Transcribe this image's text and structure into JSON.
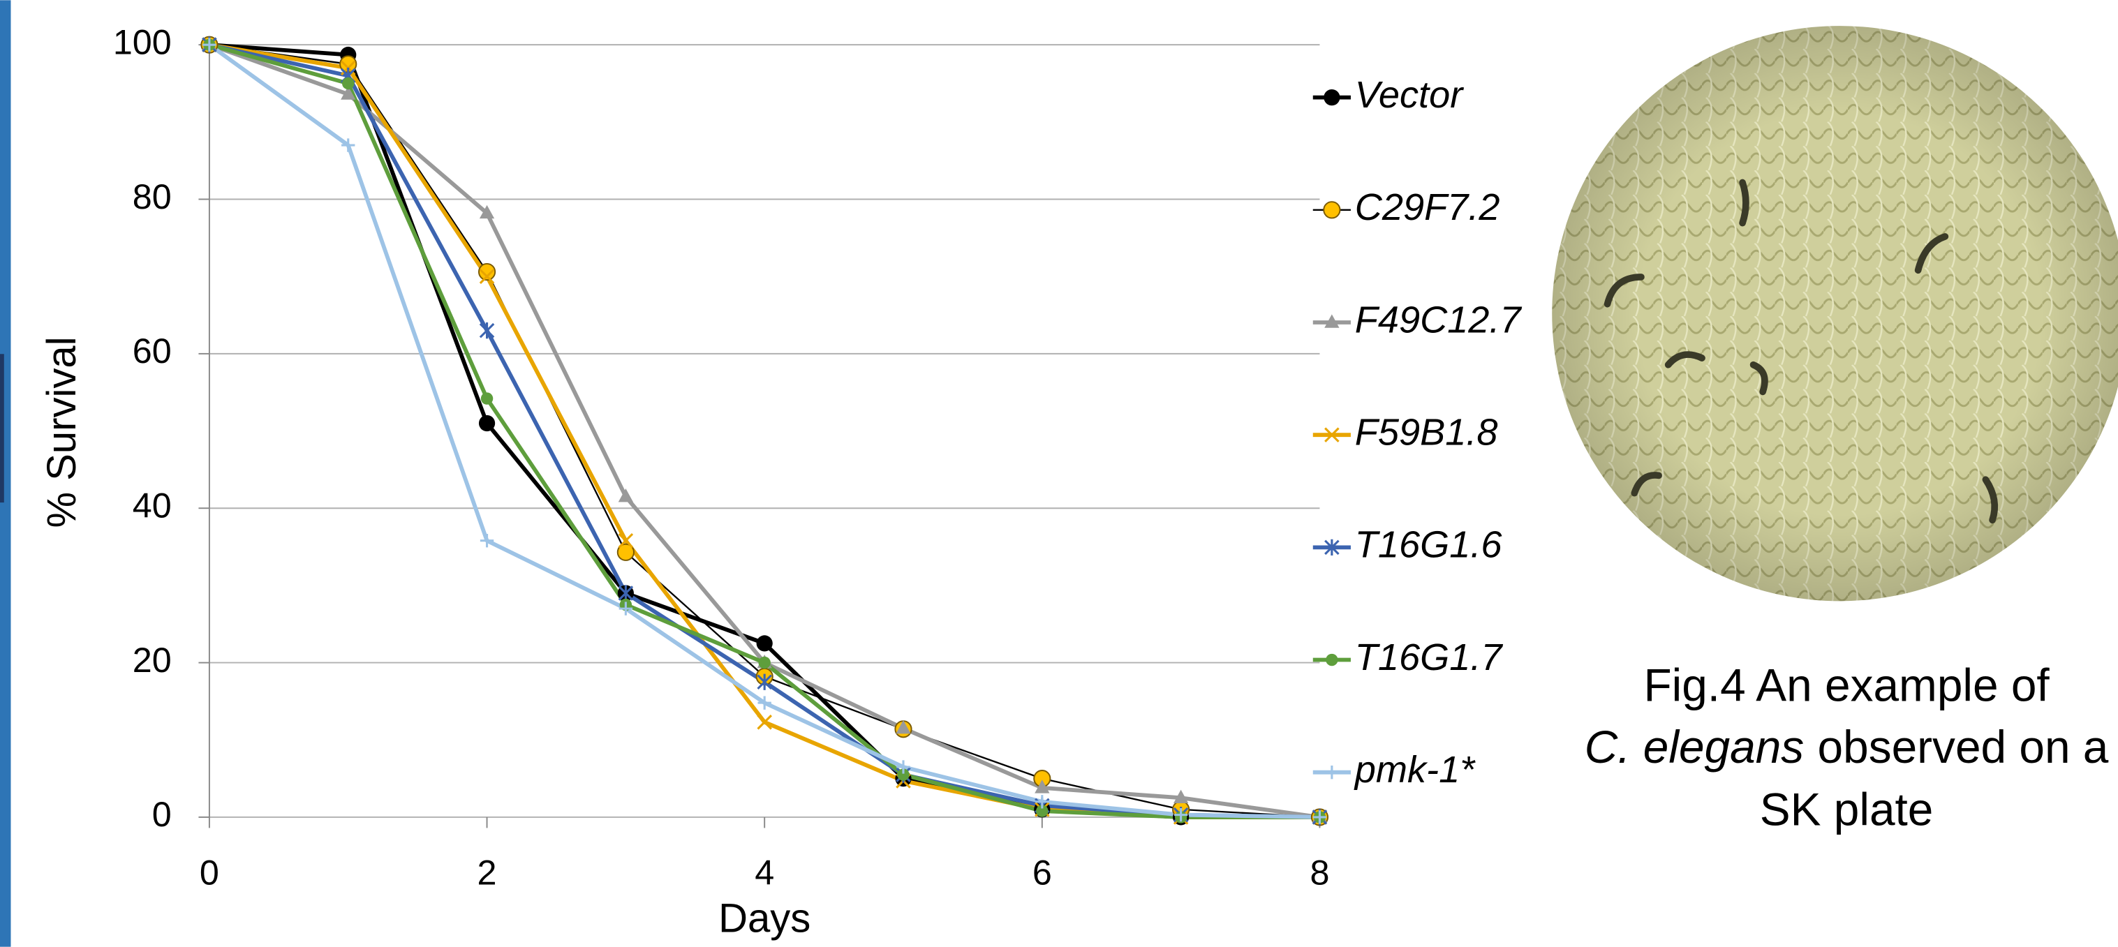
{
  "chart_data": {
    "type": "line",
    "x_label": "Days",
    "y_label": "% Survival",
    "x": [
      0,
      1,
      2,
      3,
      4,
      5,
      6,
      7,
      8
    ],
    "xlim": [
      0,
      8
    ],
    "xticks": [
      0,
      2,
      4,
      6,
      8
    ],
    "ylim": [
      0,
      100
    ],
    "yticks": [
      0,
      20,
      40,
      60,
      80,
      100
    ],
    "grid": true,
    "legend": "right",
    "series": [
      {
        "name": "Vector",
        "color": "#000000",
        "marker": "circle",
        "values": [
          100,
          98.7,
          51,
          29,
          22.5,
          5,
          1,
          0,
          0
        ]
      },
      {
        "name": "C29F7.2",
        "color": "#FFC000",
        "marker": "circle-outline",
        "values": [
          100,
          97.5,
          70.6,
          34.3,
          18.2,
          11.4,
          5,
          1,
          0
        ]
      },
      {
        "name": "F49C12.7",
        "color": "#999999",
        "marker": "triangle",
        "values": [
          100,
          93.6,
          78.2,
          41.5,
          20,
          11.5,
          3.8,
          2.5,
          0
        ]
      },
      {
        "name": "F59B1.8",
        "color": "#E8A500",
        "marker": "x",
        "values": [
          100,
          97,
          70,
          35.8,
          12.3,
          4.7,
          1,
          0,
          0
        ]
      },
      {
        "name": "T16G1.6",
        "color": "#3C64B0",
        "marker": "star",
        "values": [
          100,
          96,
          63,
          29,
          17.5,
          5.5,
          1.5,
          0.3,
          0
        ]
      },
      {
        "name": "T16G1.7",
        "color": "#5E9E3C",
        "marker": "dot",
        "values": [
          100,
          95,
          54.2,
          27.5,
          20,
          5.5,
          0.8,
          0,
          0
        ]
      },
      {
        "name": "pmk-1*",
        "color": "#9DC3E6",
        "marker": "plus",
        "values": [
          100,
          87,
          35.8,
          27,
          14.8,
          6.5,
          2,
          0.3,
          0
        ]
      }
    ]
  },
  "figure": {
    "caption": [
      "Fig.4 An example of",
      "C. elegans",
      "observed on a",
      "SK plate"
    ]
  }
}
